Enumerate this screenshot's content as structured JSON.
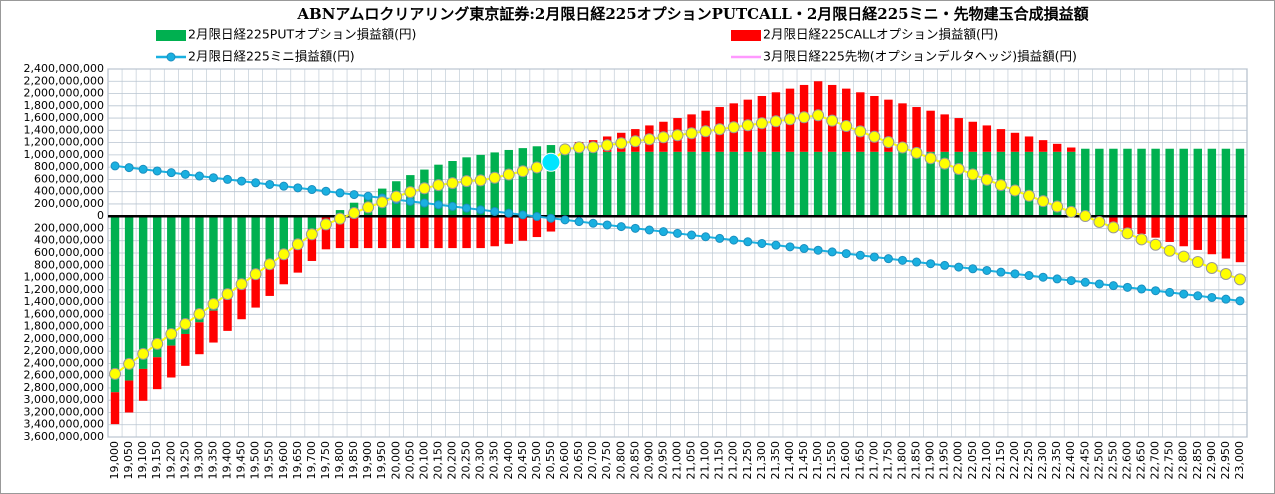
{
  "chart_data": {
    "type": "bar",
    "title": "ABNアムロクリアリング東京証券:2月限日経225オプションPUTCALL・2月限日経225ミニ・先物建玉合成損益額",
    "stacked": true,
    "grid": true,
    "negative_tick_color": "#ff0000",
    "categories": [
      "19,000",
      "19,050",
      "19,100",
      "19,150",
      "19,200",
      "19,250",
      "19,300",
      "19,350",
      "19,400",
      "19,450",
      "19,500",
      "19,550",
      "19,600",
      "19,650",
      "19,700",
      "19,750",
      "19,800",
      "19,850",
      "19,900",
      "19,950",
      "20,000",
      "20,050",
      "20,100",
      "20,150",
      "20,200",
      "20,250",
      "20,300",
      "20,350",
      "20,400",
      "20,450",
      "20,500",
      "20,550",
      "20,600",
      "20,650",
      "20,700",
      "20,750",
      "20,800",
      "20,850",
      "20,900",
      "20,950",
      "21,000",
      "21,050",
      "21,100",
      "21,150",
      "21,200",
      "21,250",
      "21,300",
      "21,350",
      "21,400",
      "21,450",
      "21,500",
      "21,550",
      "21,600",
      "21,650",
      "21,700",
      "21,750",
      "21,800",
      "21,850",
      "21,900",
      "21,950",
      "22,000",
      "22,050",
      "22,100",
      "22,150",
      "22,200",
      "22,250",
      "22,300",
      "22,350",
      "22,400",
      "22,450",
      "22,500",
      "22,550",
      "22,600",
      "22,650",
      "22,700",
      "22,750",
      "22,800",
      "22,850",
      "22,900",
      "22,950",
      "23,000"
    ],
    "series": [
      {
        "name": "2月限日経225PUTオプション損益額(円)",
        "kind": "bar",
        "color": "#00b050",
        "values": [
          -2870000000,
          -2680000000,
          -2490000000,
          -2300000000,
          -2110000000,
          -1920000000,
          -1730000000,
          -1540000000,
          -1350000000,
          -1160000000,
          -970000000,
          -780000000,
          -590000000,
          -400000000,
          -210000000,
          -20000000,
          100000000,
          220000000,
          340000000,
          450000000,
          570000000,
          670000000,
          760000000,
          840000000,
          900000000,
          960000000,
          1000000000,
          1040000000,
          1080000000,
          1110000000,
          1140000000,
          1160000000,
          1130000000,
          1080000000,
          1050000000,
          1050000000,
          1050000000,
          1050000000,
          1050000000,
          1050000000,
          1050000000,
          1050000000,
          1050000000,
          1050000000,
          1050000000,
          1050000000,
          1050000000,
          1050000000,
          1050000000,
          1050000000,
          1050000000,
          1050000000,
          1050000000,
          1050000000,
          1050000000,
          1050000000,
          1050000000,
          1050000000,
          1050000000,
          1050000000,
          1050000000,
          1050000000,
          1050000000,
          1050000000,
          1050000000,
          1050000000,
          1050000000,
          1050000000,
          1050000000,
          1100000000,
          1100000000,
          1100000000,
          1100000000,
          1100000000,
          1100000000,
          1100000000,
          1100000000,
          1100000000,
          1100000000,
          1100000000,
          1100000000
        ]
      },
      {
        "name": "2月限日経225CALLオプション損益額(円)",
        "kind": "bar",
        "color": "#ff0000",
        "values": [
          -520000000,
          -520000000,
          -520000000,
          -520000000,
          -520000000,
          -520000000,
          -520000000,
          -520000000,
          -520000000,
          -520000000,
          -520000000,
          -520000000,
          -520000000,
          -520000000,
          -520000000,
          -520000000,
          -520000000,
          -520000000,
          -520000000,
          -520000000,
          -520000000,
          -520000000,
          -520000000,
          -520000000,
          -520000000,
          -520000000,
          -520000000,
          -490000000,
          -450000000,
          -400000000,
          -340000000,
          -250000000,
          20000000,
          130000000,
          190000000,
          250000000,
          310000000,
          370000000,
          430000000,
          490000000,
          550000000,
          610000000,
          670000000,
          730000000,
          790000000,
          850000000,
          910000000,
          970000000,
          1030000000,
          1090000000,
          1150000000,
          1090000000,
          1030000000,
          970000000,
          910000000,
          850000000,
          790000000,
          730000000,
          670000000,
          610000000,
          550000000,
          490000000,
          430000000,
          370000000,
          310000000,
          250000000,
          190000000,
          130000000,
          70000000,
          -20000000,
          -90000000,
          -150000000,
          -220000000,
          -290000000,
          -350000000,
          -420000000,
          -490000000,
          -550000000,
          -620000000,
          -690000000,
          -750000000
        ]
      },
      {
        "name": "2月限日経225ミニ損益額(円)",
        "kind": "line",
        "marker": "circle",
        "color": "#1ab0e0",
        "values": [
          820000000,
          792500000,
          765000000,
          737500000,
          710000000,
          682500000,
          655000000,
          627500000,
          600000000,
          572500000,
          545000000,
          517500000,
          490000000,
          462500000,
          435000000,
          407500000,
          380000000,
          352500000,
          325000000,
          297500000,
          270000000,
          242500000,
          215000000,
          187500000,
          160000000,
          132500000,
          105000000,
          77500000,
          50000000,
          22500000,
          -5000000,
          -32500000,
          -60000000,
          -87500000,
          -115000000,
          -142500000,
          -170000000,
          -197500000,
          -225000000,
          -252500000,
          -280000000,
          -307500000,
          -335000000,
          -362500000,
          -390000000,
          -417500000,
          -445000000,
          -472500000,
          -500000000,
          -527500000,
          -555000000,
          -582500000,
          -610000000,
          -637500000,
          -665000000,
          -692500000,
          -720000000,
          -747500000,
          -775000000,
          -802500000,
          -830000000,
          -857500000,
          -885000000,
          -912500000,
          -940000000,
          -967500000,
          -995000000,
          -1022500000,
          -1050000000,
          -1077500000,
          -1105000000,
          -1132500000,
          -1160000000,
          -1187500000,
          -1215000000,
          -1242500000,
          -1270000000,
          -1297500000,
          -1325000000,
          -1352500000,
          -1380000000
        ]
      },
      {
        "name": "3月限日経225先物(オプションデルタヘッジ)損益額(円)",
        "kind": "line",
        "color": "#ff99ff",
        "values": [
          0,
          0,
          0,
          0,
          0,
          0,
          0,
          0,
          0,
          0,
          0,
          0,
          0,
          0,
          0,
          0,
          0,
          0,
          0,
          0,
          0,
          0,
          0,
          0,
          0,
          0,
          0,
          0,
          0,
          0,
          0,
          0,
          0,
          0,
          0,
          0,
          0,
          0,
          0,
          0,
          0,
          0,
          0,
          0,
          0,
          0,
          0,
          0,
          0,
          0,
          0,
          0,
          0,
          0,
          0,
          0,
          0,
          0,
          0,
          0,
          0,
          0,
          0,
          0,
          0,
          0,
          0,
          0,
          0,
          0,
          0,
          0,
          0,
          0,
          0,
          0,
          0,
          0,
          0,
          0,
          0
        ]
      },
      {
        "kind": "line",
        "marker": "circle",
        "color": "#ffff00",
        "values": [
          -2570000000,
          -2407500000,
          -2245000000,
          -2082500000,
          -1920000000,
          -1757500000,
          -1595000000,
          -1432500000,
          -1270000000,
          -1107500000,
          -945000000,
          -782500000,
          -620000000,
          -457500000,
          -295000000,
          -132500000,
          -40000000,
          52500000,
          145000000,
          227500000,
          320000000,
          392500000,
          455000000,
          507500000,
          540000000,
          572500000,
          585000000,
          627500000,
          680000000,
          732500000,
          795000000,
          877500000,
          1090000000,
          1122500000,
          1125000000,
          1157500000,
          1190000000,
          1222500000,
          1255000000,
          1287500000,
          1320000000,
          1352500000,
          1385000000,
          1417500000,
          1450000000,
          1482500000,
          1515000000,
          1547500000,
          1580000000,
          1612500000,
          1645000000,
          1557500000,
          1470000000,
          1382500000,
          1295000000,
          1207500000,
          1120000000,
          1032500000,
          945000000,
          857500000,
          770000000,
          682500000,
          595000000,
          507500000,
          420000000,
          332500000,
          245000000,
          157500000,
          70000000,
          2500000,
          -95000000,
          -182500000,
          -280000000,
          -377500000,
          -465000000,
          -562500000,
          -660000000,
          -747500000,
          -845000000,
          -942500000,
          -1030000000
        ]
      }
    ],
    "highlight": {
      "category": "20,550",
      "value": 880000000,
      "color": "#00e5ff"
    },
    "ylim": [
      -3600000000,
      2400000000
    ],
    "yticks": [
      {
        "value": 2400000000,
        "label": "2,400,000,000"
      },
      {
        "value": 2200000000,
        "label": "2,200,000,000"
      },
      {
        "value": 2000000000,
        "label": "2,000,000,000"
      },
      {
        "value": 1800000000,
        "label": "1,800,000,000"
      },
      {
        "value": 1600000000,
        "label": "1,600,000,000"
      },
      {
        "value": 1400000000,
        "label": "1,400,000,000"
      },
      {
        "value": 1200000000,
        "label": "1,200,000,000"
      },
      {
        "value": 1000000000,
        "label": "1,000,000,000"
      },
      {
        "value": 800000000,
        "label": "800,000,000"
      },
      {
        "value": 600000000,
        "label": "600,000,000"
      },
      {
        "value": 400000000,
        "label": "400,000,000"
      },
      {
        "value": 200000000,
        "label": "200,000,000"
      },
      0,
      {
        "value": -200000000,
        "label": "200,000,000"
      },
      {
        "value": -400000000,
        "label": "400,000,000"
      },
      {
        "value": -600000000,
        "label": "600,000,000"
      },
      {
        "value": -800000000,
        "label": "800,000,000"
      },
      {
        "value": -1000000000,
        "label": "1,000,000,000"
      },
      {
        "value": -1200000000,
        "label": "1,200,000,000"
      },
      {
        "value": -1400000000,
        "label": "1,400,000,000"
      },
      {
        "value": -1600000000,
        "label": "1,600,000,000"
      },
      {
        "value": -1800000000,
        "label": "1,800,000,000"
      },
      {
        "value": -2000000000,
        "label": "2,000,000,000"
      },
      {
        "value": -2200000000,
        "label": "2,200,000,000"
      },
      {
        "value": -2400000000,
        "label": "2,400,000,000"
      },
      {
        "value": -2600000000,
        "label": "2,600,000,000"
      },
      {
        "value": -2800000000,
        "label": "2,800,000,000"
      },
      {
        "value": -3000000000,
        "label": "3,000,000,000"
      },
      {
        "value": -3200000000,
        "label": "3,200,000,000"
      },
      {
        "value": -3400000000,
        "label": "3,400,000,000"
      },
      {
        "value": -3600000000,
        "label": "3,600,000,000"
      }
    ]
  }
}
